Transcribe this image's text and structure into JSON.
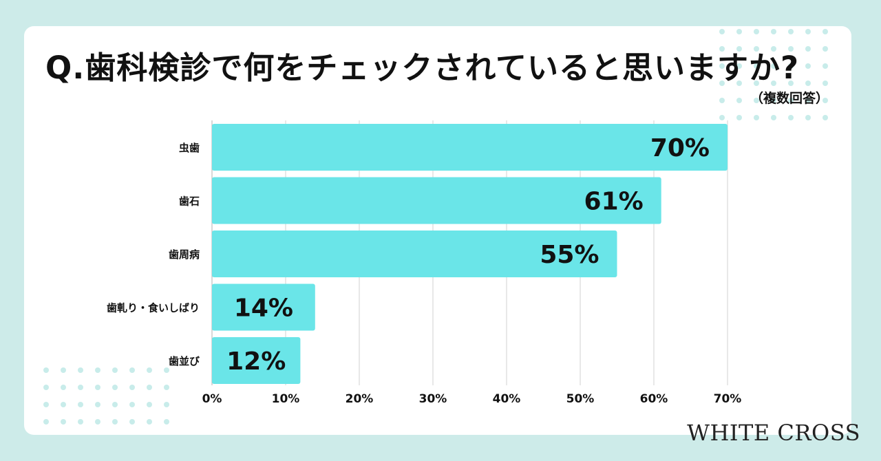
{
  "header": {
    "title": "Q.歯科検診で何をチェックされていると思いますか?",
    "subtitle": "（複数回答）"
  },
  "brand": {
    "name": "WHITE CROSS"
  },
  "colors": {
    "bar": "#6ae5e8",
    "background": "#cdebe9",
    "grid": "#d9d9d9",
    "dots": "#c8ecea"
  },
  "chart_data": {
    "type": "bar",
    "orientation": "horizontal",
    "categories": [
      "虫歯",
      "歯石",
      "歯周病",
      "歯軋り・食いしばり",
      "歯並び"
    ],
    "values": [
      70,
      61,
      55,
      14,
      12
    ],
    "value_labels": [
      "70%",
      "61%",
      "55%",
      "14%",
      "12%"
    ],
    "xlim": [
      0,
      70
    ],
    "xticks": [
      0,
      10,
      20,
      30,
      40,
      50,
      60,
      70
    ],
    "xtick_labels": [
      "0%",
      "10%",
      "20%",
      "30%",
      "40%",
      "50%",
      "60%",
      "70%"
    ],
    "grid": true
  }
}
